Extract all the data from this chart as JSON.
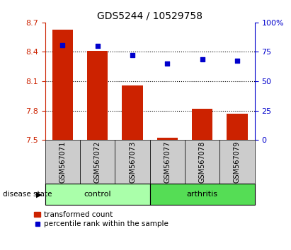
{
  "title": "GDS5244 / 10529758",
  "samples": [
    "GSM567071",
    "GSM567072",
    "GSM567073",
    "GSM567077",
    "GSM567078",
    "GSM567079"
  ],
  "bar_values": [
    8.63,
    8.41,
    8.06,
    7.52,
    7.82,
    7.77
  ],
  "percentile_values": [
    80.5,
    80.0,
    72.5,
    65.0,
    68.5,
    67.5
  ],
  "ylim_left": [
    7.5,
    8.7
  ],
  "ylim_right": [
    0,
    100
  ],
  "yticks_left": [
    7.5,
    7.8,
    8.1,
    8.4,
    8.7
  ],
  "yticks_right": [
    0,
    25,
    50,
    75,
    100
  ],
  "ytick_labels_right": [
    "0",
    "25",
    "50",
    "75",
    "100%"
  ],
  "bar_color": "#cc2200",
  "dot_color": "#0000cc",
  "control_color": "#aaffaa",
  "arthritis_color": "#55dd55",
  "sample_box_color": "#cccccc",
  "disease_label": "disease state",
  "control_label": "control",
  "arthritis_label": "arthritis",
  "legend_bar_label": "transformed count",
  "legend_dot_label": "percentile rank within the sample",
  "hgrid_dotted_values": [
    7.8,
    8.1,
    8.4
  ],
  "bar_width": 0.6
}
